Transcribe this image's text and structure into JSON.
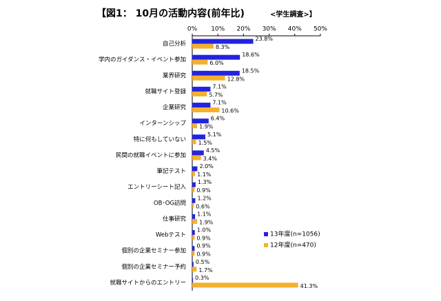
{
  "chart_data": {
    "type": "hbar",
    "title": "【図1： 10月の活動内容(前年比)",
    "subtitle": "<学生調査>】",
    "categories": [
      "自己分析",
      "学内のガイダンス・イベント参加",
      "業界研究",
      "就職サイト登録",
      "企業研究",
      "インターンシップ",
      "特に何もしていない",
      "民間の就職イベントに参加",
      "筆記テスト",
      "エントリーシート記入",
      "OB･OG訪問",
      "仕事研究",
      "Webテスト",
      "個別の企業セミナー参加",
      "個別の企業セミナー予約",
      "就職サイトからのエントリー"
    ],
    "series": [
      {
        "name": "13年度(n=1056)",
        "color": "#2323e0",
        "values": [
          23.8,
          18.6,
          18.5,
          7.1,
          7.1,
          6.4,
          5.1,
          4.5,
          2.0,
          1.3,
          1.2,
          1.1,
          1.0,
          0.9,
          0.5,
          0.3
        ],
        "value_labels": [
          "23.8%",
          "18.6%",
          "18.5%",
          "7.1%",
          "7.1%",
          "6.4%",
          "5.1%",
          "4.5%",
          "2.0%",
          "1.3%",
          "1.2%",
          "1.1%",
          "1.0%",
          "0.9%",
          "0.5%",
          "0.3%"
        ]
      },
      {
        "name": "12年度(n=470)",
        "color": "#f5b02e",
        "values": [
          8.3,
          6.0,
          12.8,
          5.7,
          10.6,
          1.9,
          1.5,
          3.4,
          1.1,
          0.9,
          0.6,
          1.9,
          0.9,
          0.9,
          1.7,
          41.3
        ],
        "value_labels": [
          "8.3%",
          "6.0%",
          "12.8%",
          "5.7%",
          "10.6%",
          "1.9%",
          "1.5%",
          "3.4%",
          "1.1%",
          "0.9%",
          "0.6%",
          "1.9%",
          "0.9%",
          "0.9%",
          "1.7%",
          "41.3%"
        ]
      }
    ],
    "xlim": [
      0,
      50
    ],
    "xticks": [
      {
        "value": 0,
        "label": "0%"
      },
      {
        "value": 10,
        "label": "10%"
      },
      {
        "value": 20,
        "label": "20%"
      },
      {
        "value": 30,
        "label": "30%"
      },
      {
        "value": 40,
        "label": "40%"
      },
      {
        "value": 50,
        "label": "50%"
      }
    ]
  }
}
